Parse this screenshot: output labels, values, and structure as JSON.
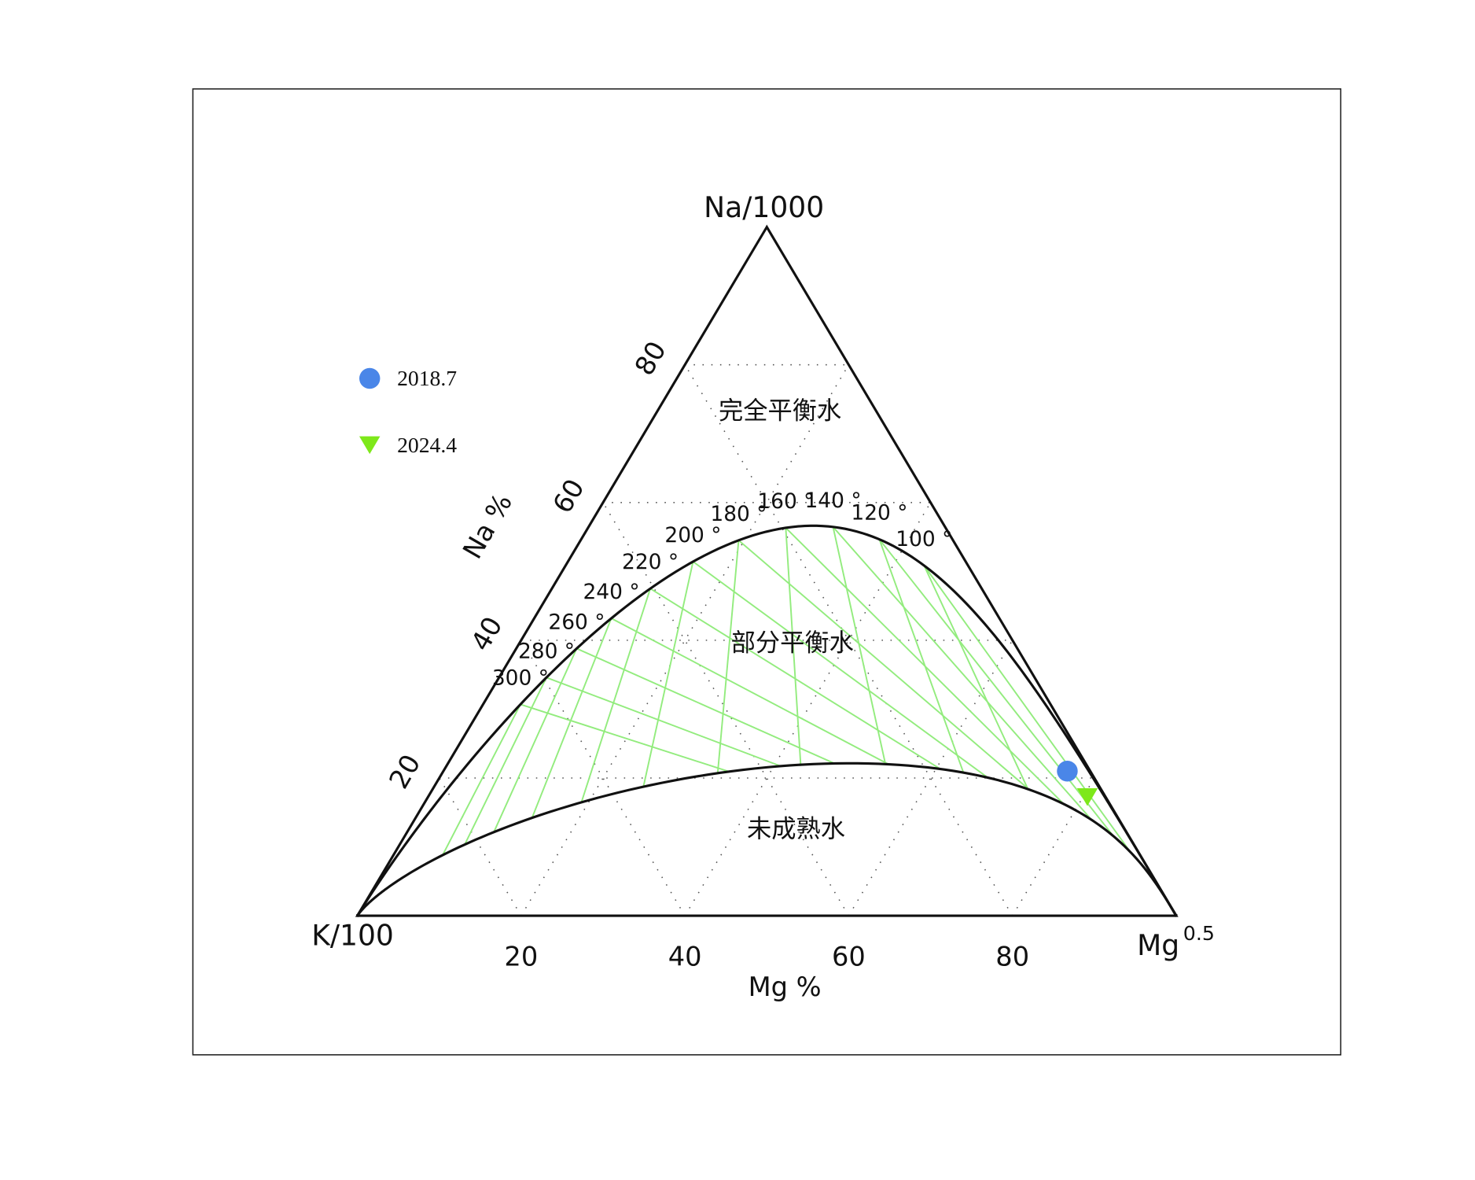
{
  "chart_data": {
    "type": "ternary",
    "apex_labels": {
      "top": "Na/1000",
      "left": "K/100",
      "right": {
        "text": "Mg",
        "superscript": "0.5"
      }
    },
    "axis_labels": {
      "na": "Na %",
      "mg": "Mg %"
    },
    "na_ticks": [
      20,
      40,
      60,
      80
    ],
    "mg_ticks": [
      20,
      40,
      60,
      80
    ],
    "grid": true,
    "regions": [
      "完全平衡水",
      "部分平衡水",
      "未成熟水"
    ],
    "isotherm_color": "#93ec7e",
    "isotherms": [
      {
        "value": 100,
        "label": "100 °"
      },
      {
        "value": 120,
        "label": "120 °"
      },
      {
        "value": 140,
        "label": "140 °"
      },
      {
        "value": 160,
        "label": "160 °"
      },
      {
        "value": 180,
        "label": "180 °"
      },
      {
        "value": 200,
        "label": "200 °"
      },
      {
        "value": 220,
        "label": "220 °"
      },
      {
        "value": 240,
        "label": "240 °"
      },
      {
        "value": 260,
        "label": "260 °"
      },
      {
        "value": 280,
        "label": "280 °"
      },
      {
        "value": 300,
        "label": "300 °"
      }
    ],
    "series": [
      {
        "name": "2018.7",
        "color": "#4a86e8",
        "marker": "circle",
        "na": [
          21.0
        ],
        "k": [
          2.8
        ],
        "mg": [
          76.2
        ]
      },
      {
        "name": "2024.4",
        "color": "#7ee81a",
        "marker": "triangle-down",
        "na": [
          17.3
        ],
        "k": [
          2.2
        ],
        "mg": [
          80.5
        ]
      }
    ]
  }
}
